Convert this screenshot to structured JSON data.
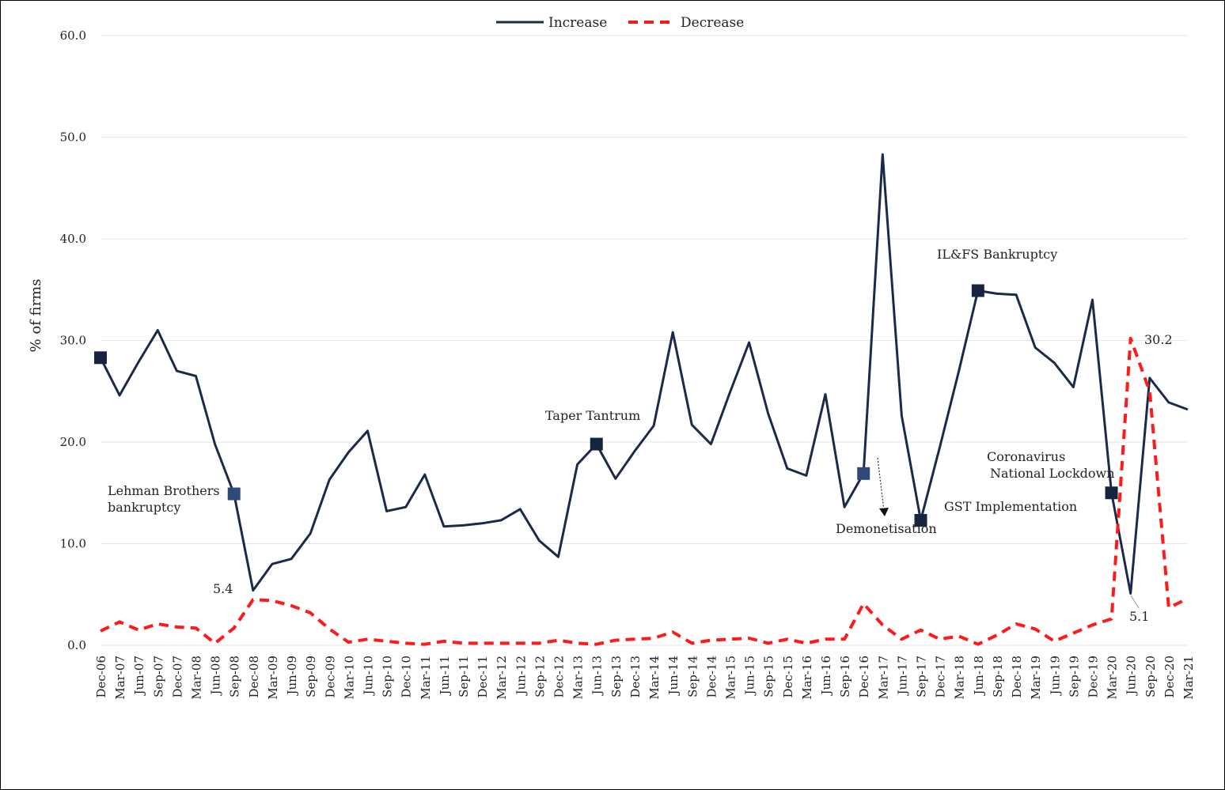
{
  "chart_data": {
    "type": "line",
    "ylabel": "% of firms",
    "ylim": [
      0,
      60
    ],
    "yticks": [
      "0.0",
      "10.0",
      "20.0",
      "30.0",
      "40.0",
      "50.0",
      "60.0"
    ],
    "grid": true,
    "legend_position": "top",
    "categories": [
      "Dec-06",
      "Mar-07",
      "Jun-07",
      "Sep-07",
      "Dec-07",
      "Mar-08",
      "Jun-08",
      "Sep-08",
      "Dec-08",
      "Mar-09",
      "Jun-09",
      "Sep-09",
      "Dec-09",
      "Mar-10",
      "Jun-10",
      "Sep-10",
      "Dec-10",
      "Mar-11",
      "Jun-11",
      "Sep-11",
      "Dec-11",
      "Mar-12",
      "Jun-12",
      "Sep-12",
      "Dec-12",
      "Mar-13",
      "Jun-13",
      "Sep-13",
      "Dec-13",
      "Mar-14",
      "Jun-14",
      "Sep-14",
      "Dec-14",
      "Mar-15",
      "Jun-15",
      "Sep-15",
      "Dec-15",
      "Mar-16",
      "Jun-16",
      "Sep-16",
      "Dec-16",
      "Mar-17",
      "Jun-17",
      "Sep-17",
      "Dec-17",
      "Mar-18",
      "Jun-18",
      "Sep-18",
      "Dec-18",
      "Mar-19",
      "Jun-19",
      "Sep-19",
      "Dec-19",
      "Mar-20",
      "Jun-20",
      "Sep-20",
      "Dec-20",
      "Mar-21"
    ],
    "series": [
      {
        "name": "Increase",
        "color": "#1b2a4a",
        "style": "solid",
        "values": [
          28.3,
          24.6,
          27.9,
          31.0,
          27.0,
          26.5,
          19.8,
          14.9,
          5.4,
          8.0,
          8.5,
          11.0,
          16.3,
          19.0,
          21.1,
          13.2,
          13.6,
          16.8,
          11.7,
          11.8,
          12.0,
          12.3,
          13.4,
          10.3,
          8.7,
          17.8,
          19.8,
          16.4,
          19.1,
          21.6,
          30.8,
          21.7,
          19.8,
          24.9,
          29.8,
          22.8,
          17.4,
          16.7,
          24.7,
          13.6,
          16.9,
          48.3,
          22.6,
          12.3,
          19.5,
          27.0,
          34.9,
          34.6,
          34.5,
          29.3,
          27.8,
          25.4,
          34.0,
          15.0,
          5.1,
          26.3,
          23.9,
          23.2
        ]
      },
      {
        "name": "Decrease",
        "color": "#ff1a1a",
        "style": "dashed",
        "values": [
          1.4,
          2.3,
          1.5,
          2.1,
          1.8,
          1.7,
          0.2,
          1.7,
          4.5,
          4.4,
          3.9,
          3.2,
          1.6,
          0.3,
          0.6,
          0.4,
          0.2,
          0.1,
          0.4,
          0.2,
          0.2,
          0.2,
          0.2,
          0.2,
          0.5,
          0.2,
          0.1,
          0.5,
          0.6,
          0.7,
          1.3,
          0.2,
          0.5,
          0.6,
          0.7,
          0.2,
          0.6,
          0.2,
          0.6,
          0.6,
          4.1,
          2.0,
          0.6,
          1.5,
          0.6,
          0.9,
          0.1,
          1.0,
          2.1,
          1.6,
          0.4,
          1.2,
          2.0,
          2.6,
          30.2,
          25.0,
          3.7,
          4.6
        ]
      }
    ],
    "markers": [
      {
        "series": "Increase",
        "category": "Dec-06"
      },
      {
        "series": "Increase",
        "category": "Sep-08"
      },
      {
        "series": "Increase",
        "category": "Jun-13"
      },
      {
        "series": "Increase",
        "category": "Dec-16"
      },
      {
        "series": "Increase",
        "category": "Sep-17"
      },
      {
        "series": "Increase",
        "category": "Jun-18"
      },
      {
        "series": "Increase",
        "category": "Mar-20"
      }
    ],
    "annotations": [
      {
        "id": "lehman",
        "lines": [
          "Lehman Brothers",
          "bankruptcy"
        ]
      },
      {
        "id": "taper",
        "lines": [
          "Taper Tantrum"
        ]
      },
      {
        "id": "ilfs",
        "lines": [
          "IL&FS Bankruptcy"
        ]
      },
      {
        "id": "corona",
        "lines": [
          "Coronavirus",
          "National Lockdown"
        ]
      },
      {
        "id": "gst",
        "lines": [
          "GST Implementation"
        ]
      },
      {
        "id": "demon",
        "lines": [
          "Demonetisation"
        ]
      },
      {
        "id": "v54",
        "lines": [
          "5.4"
        ]
      },
      {
        "id": "v51",
        "lines": [
          "5.1"
        ]
      },
      {
        "id": "v302",
        "lines": [
          "30.2"
        ]
      }
    ]
  }
}
